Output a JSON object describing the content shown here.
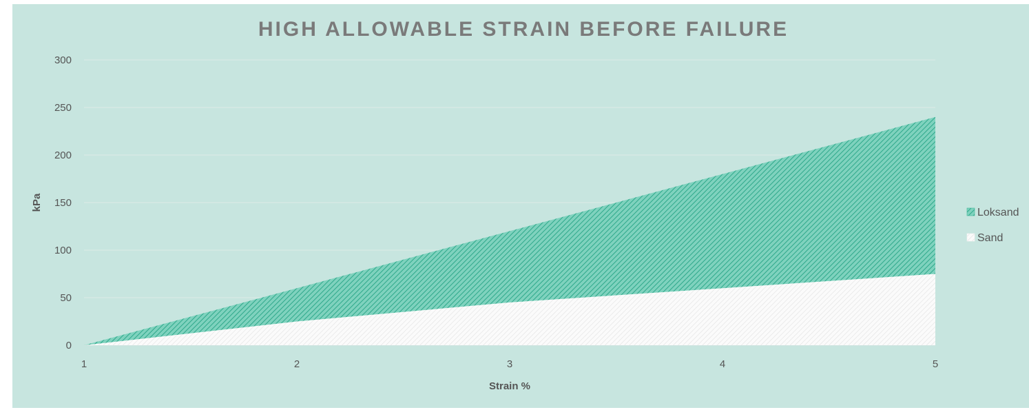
{
  "chart_data": {
    "type": "area",
    "title": "HIGH ALLOWABLE STRAIN BEFORE FAILURE",
    "xlabel": "Strain %",
    "ylabel": "kPa",
    "x": [
      1,
      2,
      3,
      4,
      5
    ],
    "xlim": [
      1,
      5
    ],
    "ylim": [
      0,
      300
    ],
    "x_ticks": [
      "1",
      "2",
      "3",
      "4",
      "5"
    ],
    "y_ticks": [
      "0",
      "50",
      "100",
      "150",
      "200",
      "250",
      "300"
    ],
    "grid": true,
    "legend_position": "right",
    "series": [
      {
        "name": "Loksand",
        "values": [
          0,
          60,
          120,
          180,
          240
        ],
        "color": "#4dbfa5",
        "pattern": "diagonal-hatch"
      },
      {
        "name": "Sand",
        "values": [
          0,
          25,
          45,
          60,
          75
        ],
        "color": "#f7f7f7",
        "pattern": "diagonal-hatch"
      }
    ],
    "background_color": "#c7e5df"
  }
}
